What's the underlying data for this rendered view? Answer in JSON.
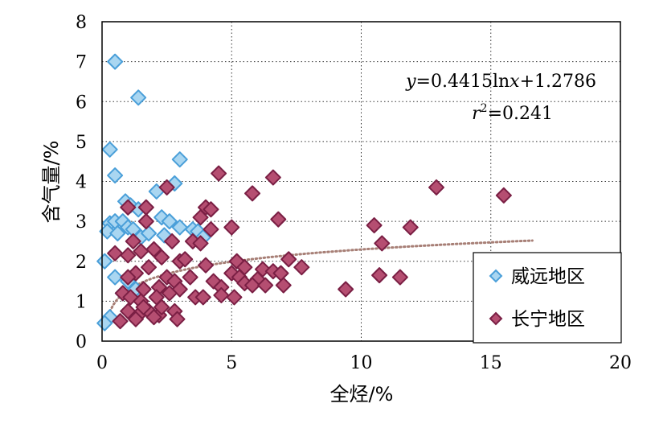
{
  "chart_data": {
    "type": "scatter",
    "xlabel": "全烃/%",
    "ylabel": "含气量/%",
    "xlim": [
      0,
      20
    ],
    "ylim": [
      0,
      8
    ],
    "xticks": [
      0,
      5,
      10,
      15,
      20
    ],
    "yticks": [
      0,
      1,
      2,
      3,
      4,
      5,
      6,
      7,
      8
    ],
    "grid": "dotted",
    "legend_position": "bottom-right",
    "equation": {
      "line1_prefix": "y",
      "line1_body": "=0.4415ln",
      "line1_var": "x",
      "line1_rest": "+1.2786",
      "line2_prefix": "r",
      "line2_sup": "2",
      "line2_rest": "=0.241"
    },
    "trendline": {
      "type": "log",
      "a": 0.4415,
      "b": 1.2786,
      "x_range": [
        0.3,
        16.6
      ],
      "color": "#a77f76"
    },
    "series": [
      {
        "name": "威远地区",
        "color_fill": "#a9d6f1",
        "color_stroke": "#4a9fd9",
        "points": [
          [
            0.5,
            7.0
          ],
          [
            1.4,
            6.1
          ],
          [
            0.3,
            4.8
          ],
          [
            0.5,
            4.15
          ],
          [
            3.0,
            4.55
          ],
          [
            2.8,
            3.95
          ],
          [
            2.1,
            3.75
          ],
          [
            0.9,
            3.5
          ],
          [
            1.1,
            3.4
          ],
          [
            1.4,
            3.3
          ],
          [
            0.3,
            2.95
          ],
          [
            0.5,
            3.0
          ],
          [
            0.8,
            3.0
          ],
          [
            1.0,
            2.85
          ],
          [
            0.2,
            2.75
          ],
          [
            0.6,
            2.7
          ],
          [
            1.2,
            2.8
          ],
          [
            1.5,
            2.6
          ],
          [
            1.8,
            2.7
          ],
          [
            2.3,
            3.1
          ],
          [
            2.6,
            3.0
          ],
          [
            3.0,
            2.85
          ],
          [
            3.5,
            2.8
          ],
          [
            3.7,
            2.75
          ],
          [
            3.9,
            2.6
          ],
          [
            2.4,
            2.65
          ],
          [
            0.1,
            2.0
          ],
          [
            0.5,
            1.6
          ],
          [
            1.0,
            1.5
          ],
          [
            1.3,
            1.3
          ],
          [
            0.3,
            0.6
          ],
          [
            0.1,
            0.45
          ],
          [
            0.8,
            1.2
          ]
        ]
      },
      {
        "name": "长宁地区",
        "color_fill": "#b54e71",
        "color_stroke": "#7a1f44",
        "points": [
          [
            4.5,
            4.2
          ],
          [
            6.6,
            4.1
          ],
          [
            2.5,
            3.85
          ],
          [
            5.8,
            3.7
          ],
          [
            1.0,
            3.35
          ],
          [
            1.7,
            3.35
          ],
          [
            4.0,
            3.35
          ],
          [
            4.2,
            3.3
          ],
          [
            3.8,
            3.1
          ],
          [
            1.7,
            3.0
          ],
          [
            6.8,
            3.05
          ],
          [
            5.0,
            2.85
          ],
          [
            4.2,
            2.8
          ],
          [
            2.7,
            2.5
          ],
          [
            3.5,
            2.5
          ],
          [
            3.8,
            2.45
          ],
          [
            1.2,
            2.5
          ],
          [
            0.5,
            2.2
          ],
          [
            1.0,
            2.15
          ],
          [
            1.5,
            2.25
          ],
          [
            2.0,
            2.3
          ],
          [
            2.3,
            2.1
          ],
          [
            3.0,
            2.0
          ],
          [
            3.2,
            2.05
          ],
          [
            4.0,
            1.9
          ],
          [
            5.2,
            2.0
          ],
          [
            5.5,
            1.85
          ],
          [
            6.2,
            1.8
          ],
          [
            6.6,
            1.75
          ],
          [
            6.9,
            1.7
          ],
          [
            7.2,
            2.05
          ],
          [
            7.7,
            1.85
          ],
          [
            5.0,
            1.7
          ],
          [
            5.3,
            1.6
          ],
          [
            6.0,
            1.55
          ],
          [
            1.3,
            1.7
          ],
          [
            1.8,
            1.85
          ],
          [
            2.5,
            1.6
          ],
          [
            2.8,
            1.5
          ],
          [
            3.4,
            1.6
          ],
          [
            4.3,
            1.5
          ],
          [
            5.5,
            1.45
          ],
          [
            5.8,
            1.4
          ],
          [
            6.3,
            1.4
          ],
          [
            7.0,
            1.4
          ],
          [
            1.0,
            1.6
          ],
          [
            1.6,
            1.3
          ],
          [
            2.2,
            1.35
          ],
          [
            3.0,
            1.3
          ],
          [
            4.6,
            1.35
          ],
          [
            0.8,
            1.2
          ],
          [
            1.1,
            1.1
          ],
          [
            1.5,
            1.0
          ],
          [
            2.1,
            1.1
          ],
          [
            2.6,
            1.2
          ],
          [
            3.6,
            1.1
          ],
          [
            3.9,
            1.1
          ],
          [
            4.6,
            1.15
          ],
          [
            5.1,
            1.1
          ],
          [
            1.0,
            0.75
          ],
          [
            1.4,
            0.65
          ],
          [
            1.8,
            0.75
          ],
          [
            2.2,
            0.65
          ],
          [
            2.8,
            0.75
          ],
          [
            0.7,
            0.5
          ],
          [
            1.3,
            0.55
          ],
          [
            2.0,
            0.6
          ],
          [
            2.9,
            0.55
          ],
          [
            1.6,
            0.85
          ],
          [
            2.3,
            0.85
          ],
          [
            10.5,
            2.9
          ],
          [
            10.8,
            2.45
          ],
          [
            11.9,
            2.85
          ],
          [
            12.9,
            3.85
          ],
          [
            15.5,
            3.65
          ],
          [
            9.4,
            1.3
          ],
          [
            10.7,
            1.65
          ],
          [
            11.5,
            1.6
          ]
        ]
      }
    ]
  }
}
